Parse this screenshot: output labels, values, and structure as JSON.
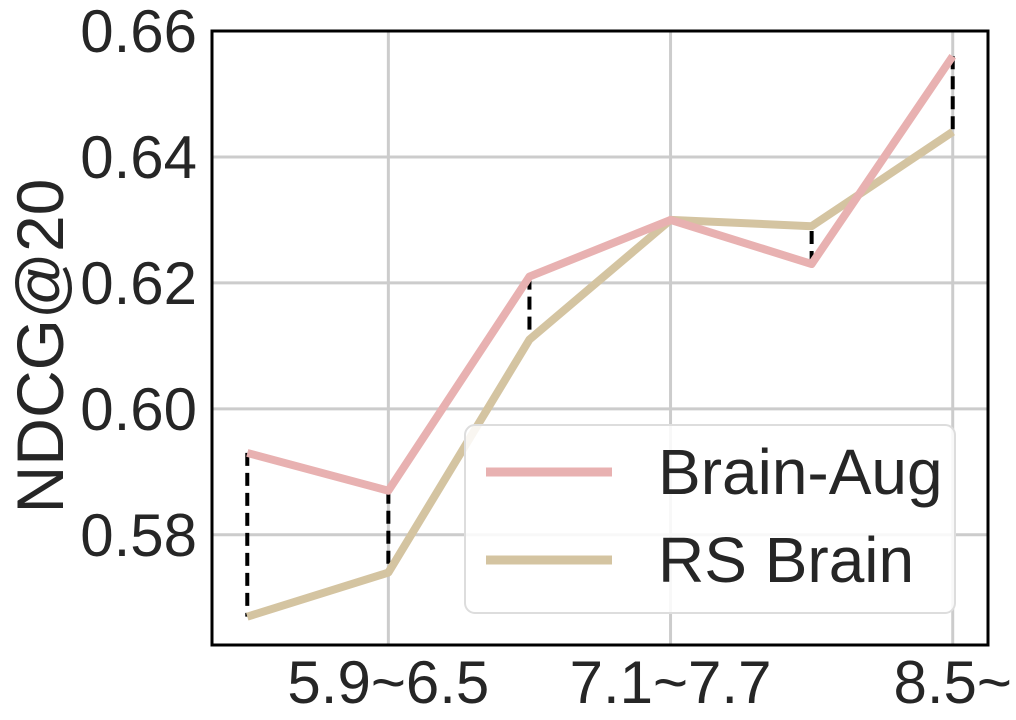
{
  "chart_data": {
    "type": "line",
    "title": "",
    "xlabel": "",
    "ylabel": "NDCG@20",
    "x_positions": [
      1,
      2,
      3,
      4,
      5,
      6
    ],
    "x_tick_labels": [
      {
        "x": 2,
        "label": "5.9~6.5"
      },
      {
        "x": 4,
        "label": "7.1~7.7"
      },
      {
        "x": 6,
        "label": "8.5~"
      }
    ],
    "xlim": [
      0.75,
      6.25
    ],
    "ylim": [
      0.5625,
      0.66
    ],
    "yticks": [
      0.58,
      0.6,
      0.62,
      0.64,
      0.66
    ],
    "ytick_labels": [
      "0.58",
      "0.60",
      "0.62",
      "0.64",
      "0.66"
    ],
    "grid": true,
    "legend_position": "lower-right",
    "series": [
      {
        "name": "Brain-Aug",
        "color": "#e8b1b1",
        "values": [
          0.593,
          0.587,
          0.621,
          0.63,
          0.623,
          0.656
        ]
      },
      {
        "name": "RS Brain",
        "color": "#d4c4a1",
        "values": [
          0.567,
          0.574,
          0.611,
          0.63,
          0.629,
          0.644
        ]
      }
    ],
    "gap_markers": {
      "style": "dashed",
      "color": "#000000"
    }
  }
}
